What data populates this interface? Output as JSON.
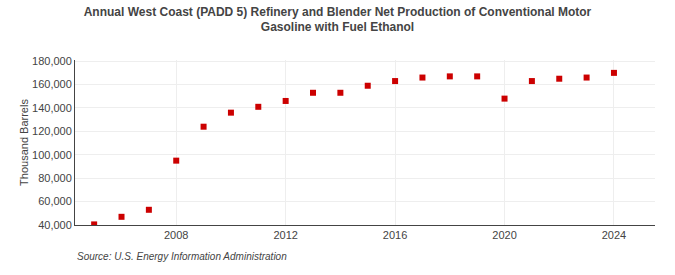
{
  "chart_data": {
    "type": "scatter",
    "title": "Annual West Coast (PADD 5) Refinery and Blender Net Production of Conventional Motor\nGasoline with Fuel Ethanol",
    "ylabel": "Thousand Barrels",
    "source": "Source: U.S. Energy Information Administration",
    "x": [
      2005,
      2006,
      2007,
      2008,
      2009,
      2010,
      2011,
      2012,
      2013,
      2014,
      2015,
      2016,
      2017,
      2018,
      2019,
      2020,
      2021,
      2022,
      2023,
      2024
    ],
    "values": [
      40500,
      47000,
      53000,
      95000,
      124000,
      136000,
      141000,
      146000,
      153000,
      153000,
      159000,
      163000,
      166000,
      167000,
      167000,
      148000,
      163000,
      165000,
      166000,
      170000
    ],
    "color": "#cc0000",
    "marker": "square",
    "xlim": [
      2004.3,
      2025.5
    ],
    "xticks": [
      2008,
      2012,
      2016,
      2020,
      2024
    ],
    "ylim": [
      40000,
      181000
    ],
    "yticks": [
      {
        "value": 40000,
        "label": "40,000"
      },
      {
        "value": 60000,
        "label": "60,000"
      },
      {
        "value": 80000,
        "label": "80,000"
      },
      {
        "value": 100000,
        "label": "100,000"
      },
      {
        "value": 120000,
        "label": "120,000"
      },
      {
        "value": 140000,
        "label": "140,000"
      },
      {
        "value": 160000,
        "label": "160,000"
      },
      {
        "value": 180000,
        "label": "180,000"
      }
    ],
    "grid": true
  }
}
